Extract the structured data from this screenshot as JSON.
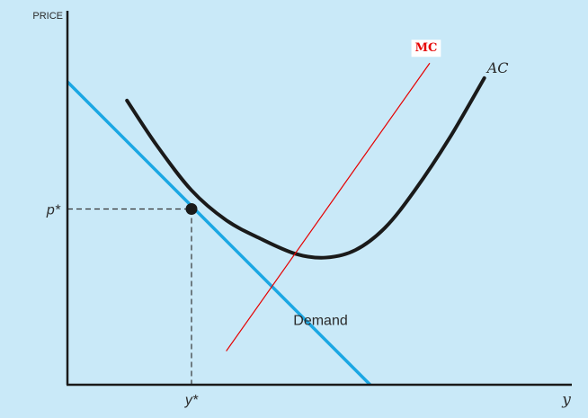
{
  "chart_data": {
    "type": "line",
    "title": "",
    "ylabel": "PRICE",
    "xlabel": "y",
    "xlim": [
      0,
      10
    ],
    "ylim": [
      0,
      10
    ],
    "grid": false,
    "series": [
      {
        "name": "Demand",
        "color": "#1ba7e3",
        "x": [
          0,
          6.1
        ],
        "y": [
          8.1,
          0
        ]
      },
      {
        "name": "AC",
        "color": "#1a1a1a",
        "x": [
          1.2,
          1.8,
          2.5,
          3.2,
          3.9,
          4.6,
          5.2,
          5.8,
          6.4,
          7.0,
          7.7,
          8.4
        ],
        "y": [
          7.6,
          6.4,
          5.2,
          4.4,
          3.9,
          3.5,
          3.4,
          3.6,
          4.2,
          5.2,
          6.6,
          8.2
        ]
      },
      {
        "name": "MC",
        "color": "#e60000",
        "x": [
          3.2,
          7.3
        ],
        "y": [
          0.9,
          8.6
        ]
      }
    ],
    "equilibrium": {
      "x": 2.5,
      "y": 4.7,
      "x_label": "y*",
      "y_label": "p*",
      "color": "#1a1a1a"
    }
  }
}
